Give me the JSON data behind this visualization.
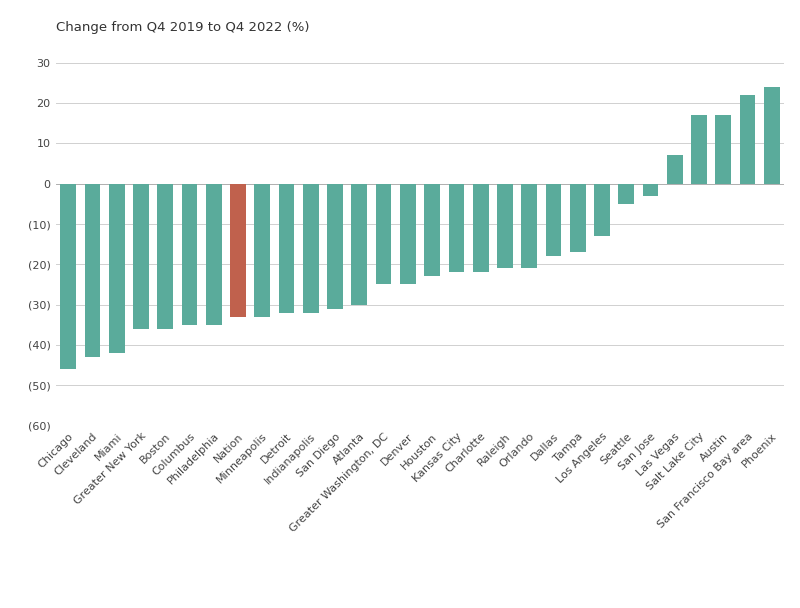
{
  "categories": [
    "Chicago",
    "Cleveland",
    "Miami",
    "Greater New York",
    "Boston",
    "Columbus",
    "Philadelphia",
    "Nation",
    "Minneapolis",
    "Detroit",
    "Indianapolis",
    "San Diego",
    "Atlanta",
    "Greater Washington, DC",
    "Denver",
    "Houston",
    "Kansas City",
    "Charlotte",
    "Raleigh",
    "Orlando",
    "Dallas",
    "Tampa",
    "Los Angeles",
    "Seattle",
    "San Jose",
    "Las Vegas",
    "Salt Lake City",
    "Austin",
    "San Francisco Bay area",
    "Phoenix"
  ],
  "values": [
    -46,
    -43,
    -42,
    -36,
    -36,
    -35,
    -35,
    -33,
    -33,
    -32,
    -32,
    -31,
    -30,
    -25,
    -25,
    -23,
    -22,
    -22,
    -21,
    -21,
    -18,
    -17,
    -13,
    -5,
    -3,
    7,
    17,
    17,
    22,
    24
  ],
  "bar_colors": [
    "#5aab9b",
    "#5aab9b",
    "#5aab9b",
    "#5aab9b",
    "#5aab9b",
    "#5aab9b",
    "#5aab9b",
    "#c0614d",
    "#5aab9b",
    "#5aab9b",
    "#5aab9b",
    "#5aab9b",
    "#5aab9b",
    "#5aab9b",
    "#5aab9b",
    "#5aab9b",
    "#5aab9b",
    "#5aab9b",
    "#5aab9b",
    "#5aab9b",
    "#5aab9b",
    "#5aab9b",
    "#5aab9b",
    "#5aab9b",
    "#5aab9b",
    "#5aab9b",
    "#5aab9b",
    "#5aab9b",
    "#5aab9b",
    "#5aab9b"
  ],
  "title": "Change from Q4 2019 to Q4 2022 (%)",
  "ylim": [
    -60,
    35
  ],
  "yticks": [
    -60,
    -50,
    -40,
    -30,
    -20,
    -10,
    0,
    10,
    20,
    30
  ],
  "ytick_labels": [
    "(60)",
    "(50)",
    "(40)",
    "(30)",
    "(20)",
    "(10)",
    "0",
    "10",
    "20",
    "30"
  ],
  "background_color": "#ffffff",
  "grid_color": "#d0d0d0",
  "title_fontsize": 9.5,
  "tick_fontsize": 8,
  "bar_width": 0.65
}
